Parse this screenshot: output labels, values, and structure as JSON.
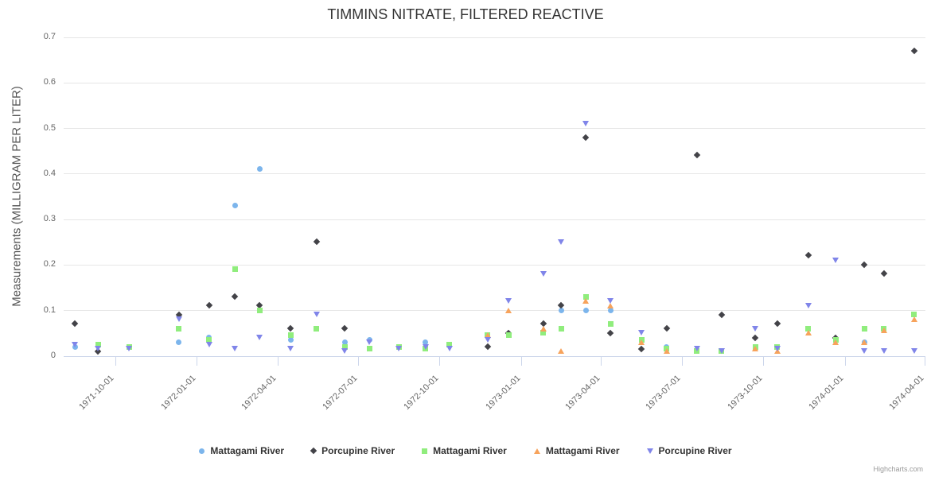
{
  "credit": "Highcharts.com",
  "y_axis": {
    "tick_labels": [
      "0",
      "0.1",
      "0.2",
      "0.3",
      "0.4",
      "0.5",
      "0.6",
      "0.7"
    ]
  },
  "x_axis": {
    "tick_labels": [
      "1971-10-01",
      "1972-01-01",
      "1972-04-01",
      "1972-07-01",
      "1972-10-01",
      "1973-01-01",
      "1973-04-01",
      "1973-07-01",
      "1973-10-01",
      "1974-01-01",
      "1974-04-01"
    ]
  },
  "chart_data": {
    "type": "scatter",
    "title": "TIMMINS NITRATE, FILTERED REACTIVE",
    "xlabel": "",
    "ylabel": "Measurements (MILLIGRAM PER LITER)",
    "ylim": [
      0,
      0.7
    ],
    "xlim": [
      "1971-08-04",
      "1974-04-02"
    ],
    "grid": "horizontal",
    "legend_position": "bottom",
    "series": [
      {
        "name": "Mattagami River",
        "color": "#7cb5ec",
        "marker": "circle",
        "points": [
          [
            "1971-08-17",
            0.02
          ],
          [
            "1971-12-12",
            0.03
          ],
          [
            "1972-01-15",
            0.04
          ],
          [
            "1972-02-13",
            0.33
          ],
          [
            "1972-03-12",
            0.41
          ],
          [
            "1972-04-16",
            0.035
          ],
          [
            "1972-06-16",
            0.03
          ],
          [
            "1972-07-14",
            0.035
          ],
          [
            "1972-09-15",
            0.03
          ],
          [
            "1973-02-15",
            0.1
          ],
          [
            "1973-03-15",
            0.1
          ],
          [
            "1973-04-12",
            0.1
          ],
          [
            "1973-06-14",
            0.02
          ],
          [
            "1974-01-23",
            0.03
          ]
        ]
      },
      {
        "name": "Porcupine River",
        "color": "#434348",
        "marker": "diamond",
        "points": [
          [
            "1971-08-17",
            0.07
          ],
          [
            "1971-09-12",
            0.01
          ],
          [
            "1971-12-12",
            0.09
          ],
          [
            "1972-01-15",
            0.11
          ],
          [
            "1972-02-13",
            0.13
          ],
          [
            "1972-03-12",
            0.11
          ],
          [
            "1972-04-16",
            0.06
          ],
          [
            "1972-05-15",
            0.25
          ],
          [
            "1972-06-16",
            0.06
          ],
          [
            "1972-11-24",
            0.02
          ],
          [
            "1972-12-18",
            0.05
          ],
          [
            "1973-01-26",
            0.07
          ],
          [
            "1973-02-15",
            0.11
          ],
          [
            "1973-03-15",
            0.48
          ],
          [
            "1973-04-12",
            0.05
          ],
          [
            "1973-05-17",
            0.015
          ],
          [
            "1973-06-14",
            0.06
          ],
          [
            "1973-07-18",
            0.44
          ],
          [
            "1973-08-15",
            0.09
          ],
          [
            "1973-09-22",
            0.04
          ],
          [
            "1973-10-17",
            0.07
          ],
          [
            "1973-11-21",
            0.22
          ],
          [
            "1973-12-22",
            0.04
          ],
          [
            "1974-01-23",
            0.2
          ],
          [
            "1974-02-14",
            0.18
          ],
          [
            "1974-03-20",
            0.67
          ]
        ]
      },
      {
        "name": "Mattagami River",
        "color": "#90ed7d",
        "marker": "square",
        "points": [
          [
            "1971-09-12",
            0.025
          ],
          [
            "1971-10-17",
            0.02
          ],
          [
            "1971-12-12",
            0.06
          ],
          [
            "1972-01-15",
            0.035
          ],
          [
            "1972-02-13",
            0.19
          ],
          [
            "1972-03-12",
            0.1
          ],
          [
            "1972-04-16",
            0.045
          ],
          [
            "1972-05-15",
            0.06
          ],
          [
            "1972-06-16",
            0.02
          ],
          [
            "1972-07-14",
            0.015
          ],
          [
            "1972-08-16",
            0.02
          ],
          [
            "1972-09-15",
            0.015
          ],
          [
            "1972-10-12",
            0.025
          ],
          [
            "1972-11-24",
            0.045
          ],
          [
            "1972-12-18",
            0.045
          ],
          [
            "1973-01-26",
            0.05
          ],
          [
            "1973-02-15",
            0.06
          ],
          [
            "1973-03-15",
            0.13
          ],
          [
            "1973-04-12",
            0.07
          ],
          [
            "1973-05-17",
            0.035
          ],
          [
            "1973-06-14",
            0.015
          ],
          [
            "1973-07-18",
            0.01
          ],
          [
            "1973-08-15",
            0.01
          ],
          [
            "1973-09-22",
            0.02
          ],
          [
            "1973-10-17",
            0.02
          ],
          [
            "1973-11-21",
            0.06
          ],
          [
            "1973-12-22",
            0.035
          ],
          [
            "1974-01-23",
            0.06
          ],
          [
            "1974-02-14",
            0.06
          ],
          [
            "1974-03-20",
            0.09
          ]
        ]
      },
      {
        "name": "Mattagami River",
        "color": "#f7a35c",
        "marker": "triangle",
        "points": [
          [
            "1972-11-24",
            0.045
          ],
          [
            "1972-12-18",
            0.1
          ],
          [
            "1973-01-26",
            0.06
          ],
          [
            "1973-02-15",
            0.01
          ],
          [
            "1973-03-15",
            0.12
          ],
          [
            "1973-04-12",
            0.11
          ],
          [
            "1973-05-17",
            0.03
          ],
          [
            "1973-06-14",
            0.01
          ],
          [
            "1973-09-22",
            0.015
          ],
          [
            "1973-10-17",
            0.01
          ],
          [
            "1973-11-21",
            0.05
          ],
          [
            "1973-12-22",
            0.03
          ],
          [
            "1974-01-23",
            0.03
          ],
          [
            "1974-02-14",
            0.055
          ],
          [
            "1974-03-20",
            0.08
          ]
        ]
      },
      {
        "name": "Porcupine River",
        "color": "#8085e9",
        "marker": "triangle-down",
        "points": [
          [
            "1971-08-17",
            0.025
          ],
          [
            "1971-09-12",
            0.015
          ],
          [
            "1971-10-17",
            0.015
          ],
          [
            "1971-12-12",
            0.08
          ],
          [
            "1972-01-15",
            0.025
          ],
          [
            "1972-02-13",
            0.015
          ],
          [
            "1972-03-12",
            0.04
          ],
          [
            "1972-04-16",
            0.015
          ],
          [
            "1972-05-15",
            0.09
          ],
          [
            "1972-06-16",
            0.01
          ],
          [
            "1972-07-14",
            0.03
          ],
          [
            "1972-08-16",
            0.015
          ],
          [
            "1972-09-15",
            0.02
          ],
          [
            "1972-10-12",
            0.015
          ],
          [
            "1972-11-24",
            0.035
          ],
          [
            "1972-12-18",
            0.12
          ],
          [
            "1973-01-26",
            0.18
          ],
          [
            "1973-02-15",
            0.25
          ],
          [
            "1973-03-15",
            0.51
          ],
          [
            "1973-04-12",
            0.12
          ],
          [
            "1973-05-17",
            0.05
          ],
          [
            "1973-07-18",
            0.015
          ],
          [
            "1973-08-15",
            0.01
          ],
          [
            "1973-09-22",
            0.06
          ],
          [
            "1973-10-17",
            0.015
          ],
          [
            "1973-11-21",
            0.11
          ],
          [
            "1973-12-22",
            0.21
          ],
          [
            "1974-01-23",
            0.01
          ],
          [
            "1974-02-14",
            0.01
          ],
          [
            "1974-03-20",
            0.01
          ]
        ]
      }
    ]
  }
}
